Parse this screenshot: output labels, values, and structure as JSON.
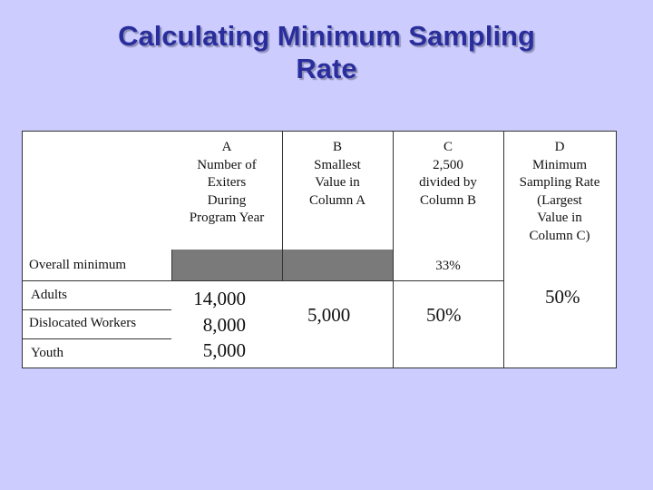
{
  "title": {
    "line1": "Calculating Minimum Sampling",
    "line2": "Rate"
  },
  "table": {
    "headers": {
      "a": "A\nNumber of\nExiters\nDuring\nProgram Year",
      "b": "B\nSmallest\nValue in\nColumn A",
      "c": "C\n2,500\ndivided by\nColumn B",
      "d": "D\nMinimum\nSampling Rate\n(Largest\nValue in\nColumn C)"
    },
    "overall": {
      "label": "Overall minimum",
      "c_value": "33%"
    },
    "rows": [
      {
        "label": "Adults",
        "a_value": "14,000"
      },
      {
        "label": "Dislocated Workers",
        "a_value": "8,000"
      },
      {
        "label": "Youth",
        "a_value": "5,000"
      }
    ],
    "group": {
      "b_value": "5,000",
      "c_value": "50%",
      "d_value": "50%"
    }
  },
  "colors": {
    "background": "#ccccff",
    "title": "#2a2e9c",
    "gray_cell": "#7a7a7a"
  }
}
